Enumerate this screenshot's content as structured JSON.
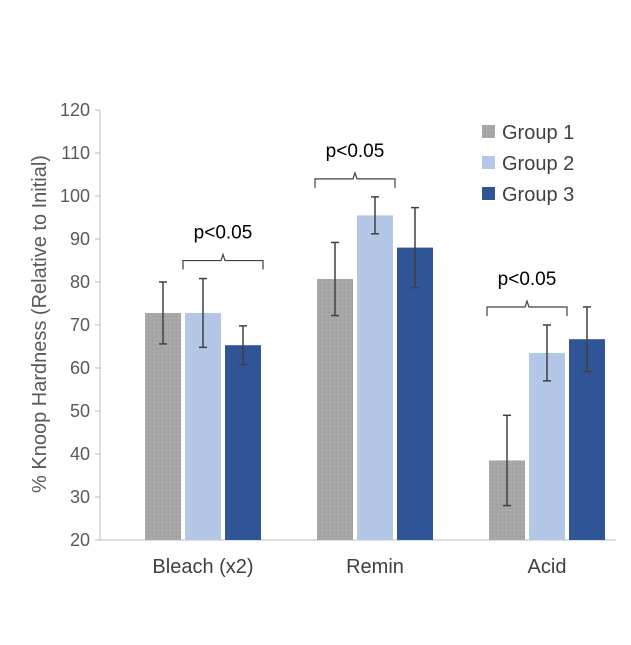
{
  "chart_data": {
    "type": "bar",
    "title": "",
    "xlabel": "",
    "ylabel": "% Knoop Hardness (Relative to Initial)",
    "ylim": [
      20,
      120
    ],
    "yticks": [
      20,
      30,
      40,
      50,
      60,
      70,
      80,
      90,
      100,
      110,
      120
    ],
    "grid": false,
    "legend_position": "top-right",
    "categories": [
      "Bleach (x2)",
      "Remin",
      "Acid"
    ],
    "series": [
      {
        "name": "Group 1",
        "color": "#a6a6a6",
        "values": [
          72.8,
          80.7,
          38.5
        ],
        "errors": [
          7.2,
          8.5,
          10.5
        ]
      },
      {
        "name": "Group 2",
        "color": "#b4c7e7",
        "values": [
          72.8,
          95.5,
          63.5
        ],
        "errors": [
          8.0,
          4.3,
          6.5
        ]
      },
      {
        "name": "Group 3",
        "color": "#2f5597",
        "values": [
          65.3,
          88.0,
          66.7
        ],
        "errors": [
          4.5,
          9.3,
          7.5
        ]
      }
    ],
    "annotations": [
      {
        "text": "p<0.05",
        "category": "Bleach (x2)",
        "from_series": 1,
        "to_series": 2
      },
      {
        "text": "p<0.05",
        "category": "Remin",
        "from_series": 0,
        "to_series": 1
      },
      {
        "text": "p<0.05",
        "category": "Acid",
        "from_series": 0,
        "to_series": 1
      }
    ]
  }
}
